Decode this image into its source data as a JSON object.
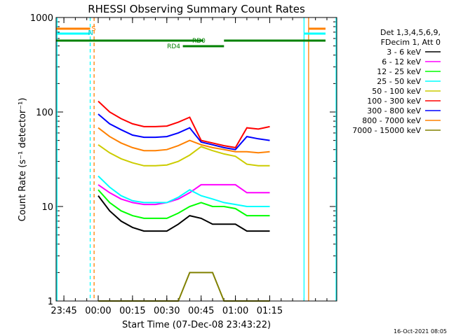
{
  "chart_data": {
    "type": "line",
    "title": "RHESSI Observing Summary Count Rates",
    "xlabel": "Start Time (07-Dec-08 23:43:22)",
    "ylabel": "Count Rate (s⁻¹ detector⁻¹)",
    "y_scale": "log",
    "ylim": [
      1,
      1000
    ],
    "xlim_minutes": [
      -18.4,
      104.3
    ],
    "x_tick_labels": [
      "23:45",
      "00:00",
      "00:15",
      "00:30",
      "00:45",
      "01:00",
      "01:15"
    ],
    "x_tick_minutes": [
      -15,
      0,
      15,
      30,
      45,
      60,
      75
    ],
    "y_tick_labels": [
      "1",
      "10",
      "100",
      "1000"
    ],
    "y_tick_values": [
      1,
      10,
      100,
      1000
    ],
    "legend_header": [
      "Det 1,3,4,5,6,9,",
      "FDecim 1, Att 0"
    ],
    "legend_position": "right",
    "timestamp": "16-Oct-2021 08:05",
    "series": [
      {
        "name": "3 - 6 keV",
        "color": "#000000",
        "x": [
          0,
          5,
          10,
          15,
          20,
          25,
          30,
          35,
          40,
          45,
          50,
          55,
          60,
          65,
          70,
          75
        ],
        "y": [
          13,
          9,
          7,
          6,
          5.5,
          5.5,
          5.5,
          6.5,
          8,
          7.5,
          6.5,
          6.5,
          6.5,
          5.5,
          5.5,
          5.5
        ]
      },
      {
        "name": "6 - 12 keV",
        "color": "#ff00ff",
        "x": [
          0,
          5,
          10,
          15,
          20,
          25,
          30,
          35,
          40,
          45,
          50,
          55,
          60,
          65,
          70,
          75
        ],
        "y": [
          17,
          14,
          12,
          11,
          10.5,
          10.5,
          11,
          12,
          14,
          17,
          17,
          17,
          17,
          14,
          14,
          14
        ]
      },
      {
        "name": "12 - 25 keV",
        "color": "#00ff00",
        "x": [
          0,
          5,
          10,
          15,
          20,
          25,
          30,
          35,
          40,
          45,
          50,
          55,
          60,
          65,
          70,
          75
        ],
        "y": [
          15,
          11,
          9,
          8,
          7.5,
          7.5,
          7.5,
          8.5,
          10,
          11,
          10,
          10,
          9.5,
          8,
          8,
          8
        ]
      },
      {
        "name": "25 - 50 keV",
        "color": "#00ffff",
        "x": [
          0,
          5,
          10,
          15,
          20,
          25,
          30,
          35,
          40,
          45,
          50,
          55,
          60,
          65,
          70,
          75
        ],
        "y": [
          21,
          16,
          13,
          11.5,
          11,
          11,
          11,
          12.5,
          15,
          13,
          12,
          11,
          10.5,
          10,
          10,
          10
        ]
      },
      {
        "name": "50 - 100 keV",
        "color": "#cccc00",
        "x": [
          0,
          5,
          10,
          15,
          20,
          25,
          30,
          35,
          40,
          45,
          50,
          55,
          60,
          65,
          70,
          75
        ],
        "y": [
          45,
          37,
          32,
          29,
          27,
          27,
          27.5,
          30,
          35,
          43,
          39,
          36,
          34,
          28,
          27,
          27
        ]
      },
      {
        "name": "100 - 300 keV",
        "color": "#ff0000",
        "x": [
          0,
          5,
          10,
          15,
          20,
          25,
          30,
          35,
          40,
          45,
          50,
          55,
          60,
          65,
          70,
          75
        ],
        "y": [
          130,
          100,
          85,
          75,
          70,
          70,
          71,
          78,
          88,
          50,
          47,
          44,
          42,
          68,
          66,
          70
        ]
      },
      {
        "name": "300 - 800 keV",
        "color": "#0000ff",
        "x": [
          0,
          5,
          10,
          15,
          20,
          25,
          30,
          35,
          40,
          45,
          50,
          55,
          60,
          65,
          70,
          75
        ],
        "y": [
          95,
          75,
          65,
          57,
          54,
          54,
          55,
          60,
          68,
          48,
          45,
          42,
          40,
          55,
          52,
          50
        ]
      },
      {
        "name": "800 - 7000 keV",
        "color": "#ff8000",
        "x": [
          0,
          5,
          10,
          15,
          20,
          25,
          30,
          35,
          40,
          45,
          50,
          55,
          60,
          65,
          70,
          75
        ],
        "y": [
          68,
          55,
          47,
          42,
          39,
          39,
          40,
          44,
          50,
          45,
          42,
          40,
          38,
          38,
          37,
          38
        ]
      },
      {
        "name": "7000 - 15000 keV",
        "color": "#808000",
        "x": [
          0,
          5,
          10,
          15,
          20,
          25,
          30,
          35,
          40,
          45,
          50,
          55,
          60,
          65,
          70,
          75
        ],
        "y": [
          1,
          1,
          1,
          1,
          1,
          1,
          1,
          1,
          2,
          2,
          2,
          1,
          1,
          1,
          1,
          1
        ]
      }
    ],
    "annotations": {
      "s_label": "S",
      "n_label": "N",
      "rd0_label": "RD0",
      "rd4_label": "RD4"
    }
  }
}
